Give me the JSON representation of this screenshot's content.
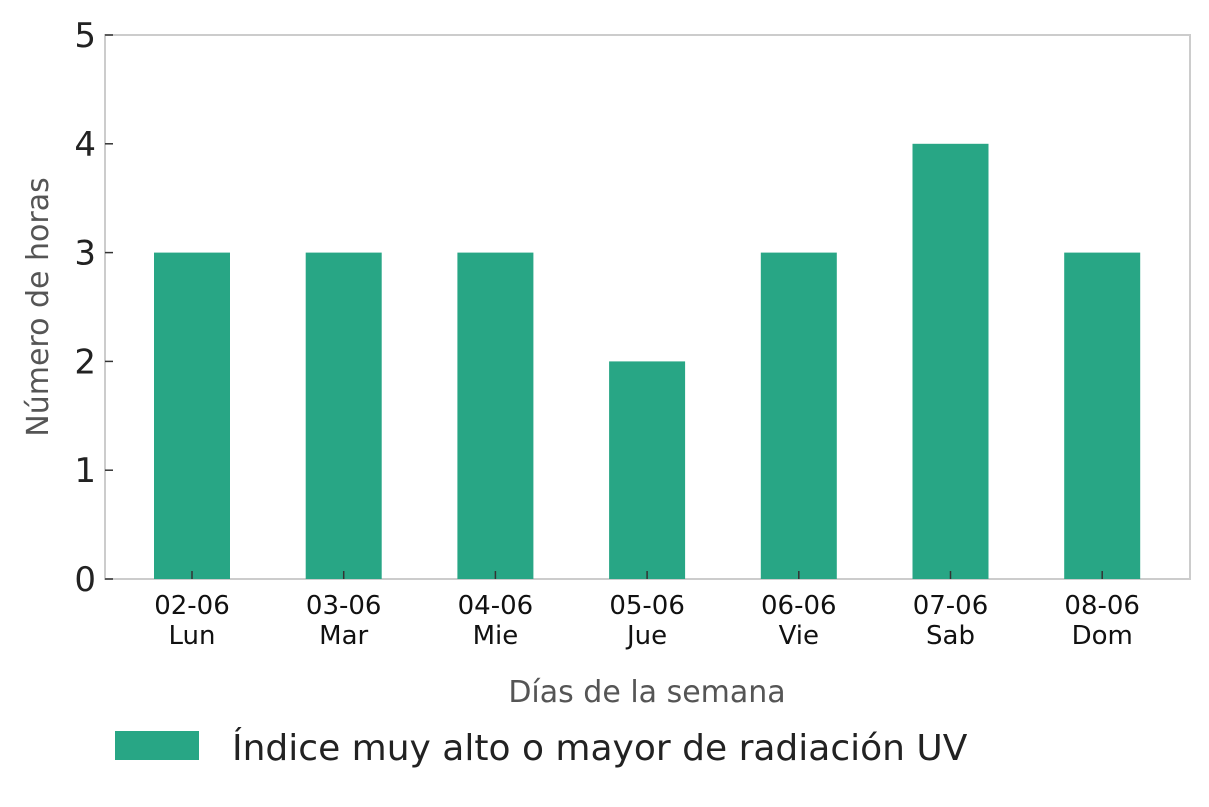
{
  "chart_data": {
    "type": "bar",
    "categories": [
      [
        "02-06",
        "Lun"
      ],
      [
        "03-06",
        "Mar"
      ],
      [
        "04-06",
        "Mie"
      ],
      [
        "05-06",
        "Jue"
      ],
      [
        "06-06",
        "Vie"
      ],
      [
        "07-06",
        "Sab"
      ],
      [
        "08-06",
        "Dom"
      ]
    ],
    "series": [
      {
        "name": "Índice muy alto o mayor de radiación UV",
        "values": [
          3,
          3,
          3,
          2,
          3,
          4,
          3
        ],
        "color": "#28a685"
      }
    ],
    "xlabel": "Días de la semana",
    "ylabel": "Número de horas",
    "ylim": [
      0,
      5
    ],
    "yticks": [
      "0",
      "1",
      "2",
      "3",
      "4",
      "5"
    ],
    "grid": false,
    "legend_position": "bottom"
  }
}
